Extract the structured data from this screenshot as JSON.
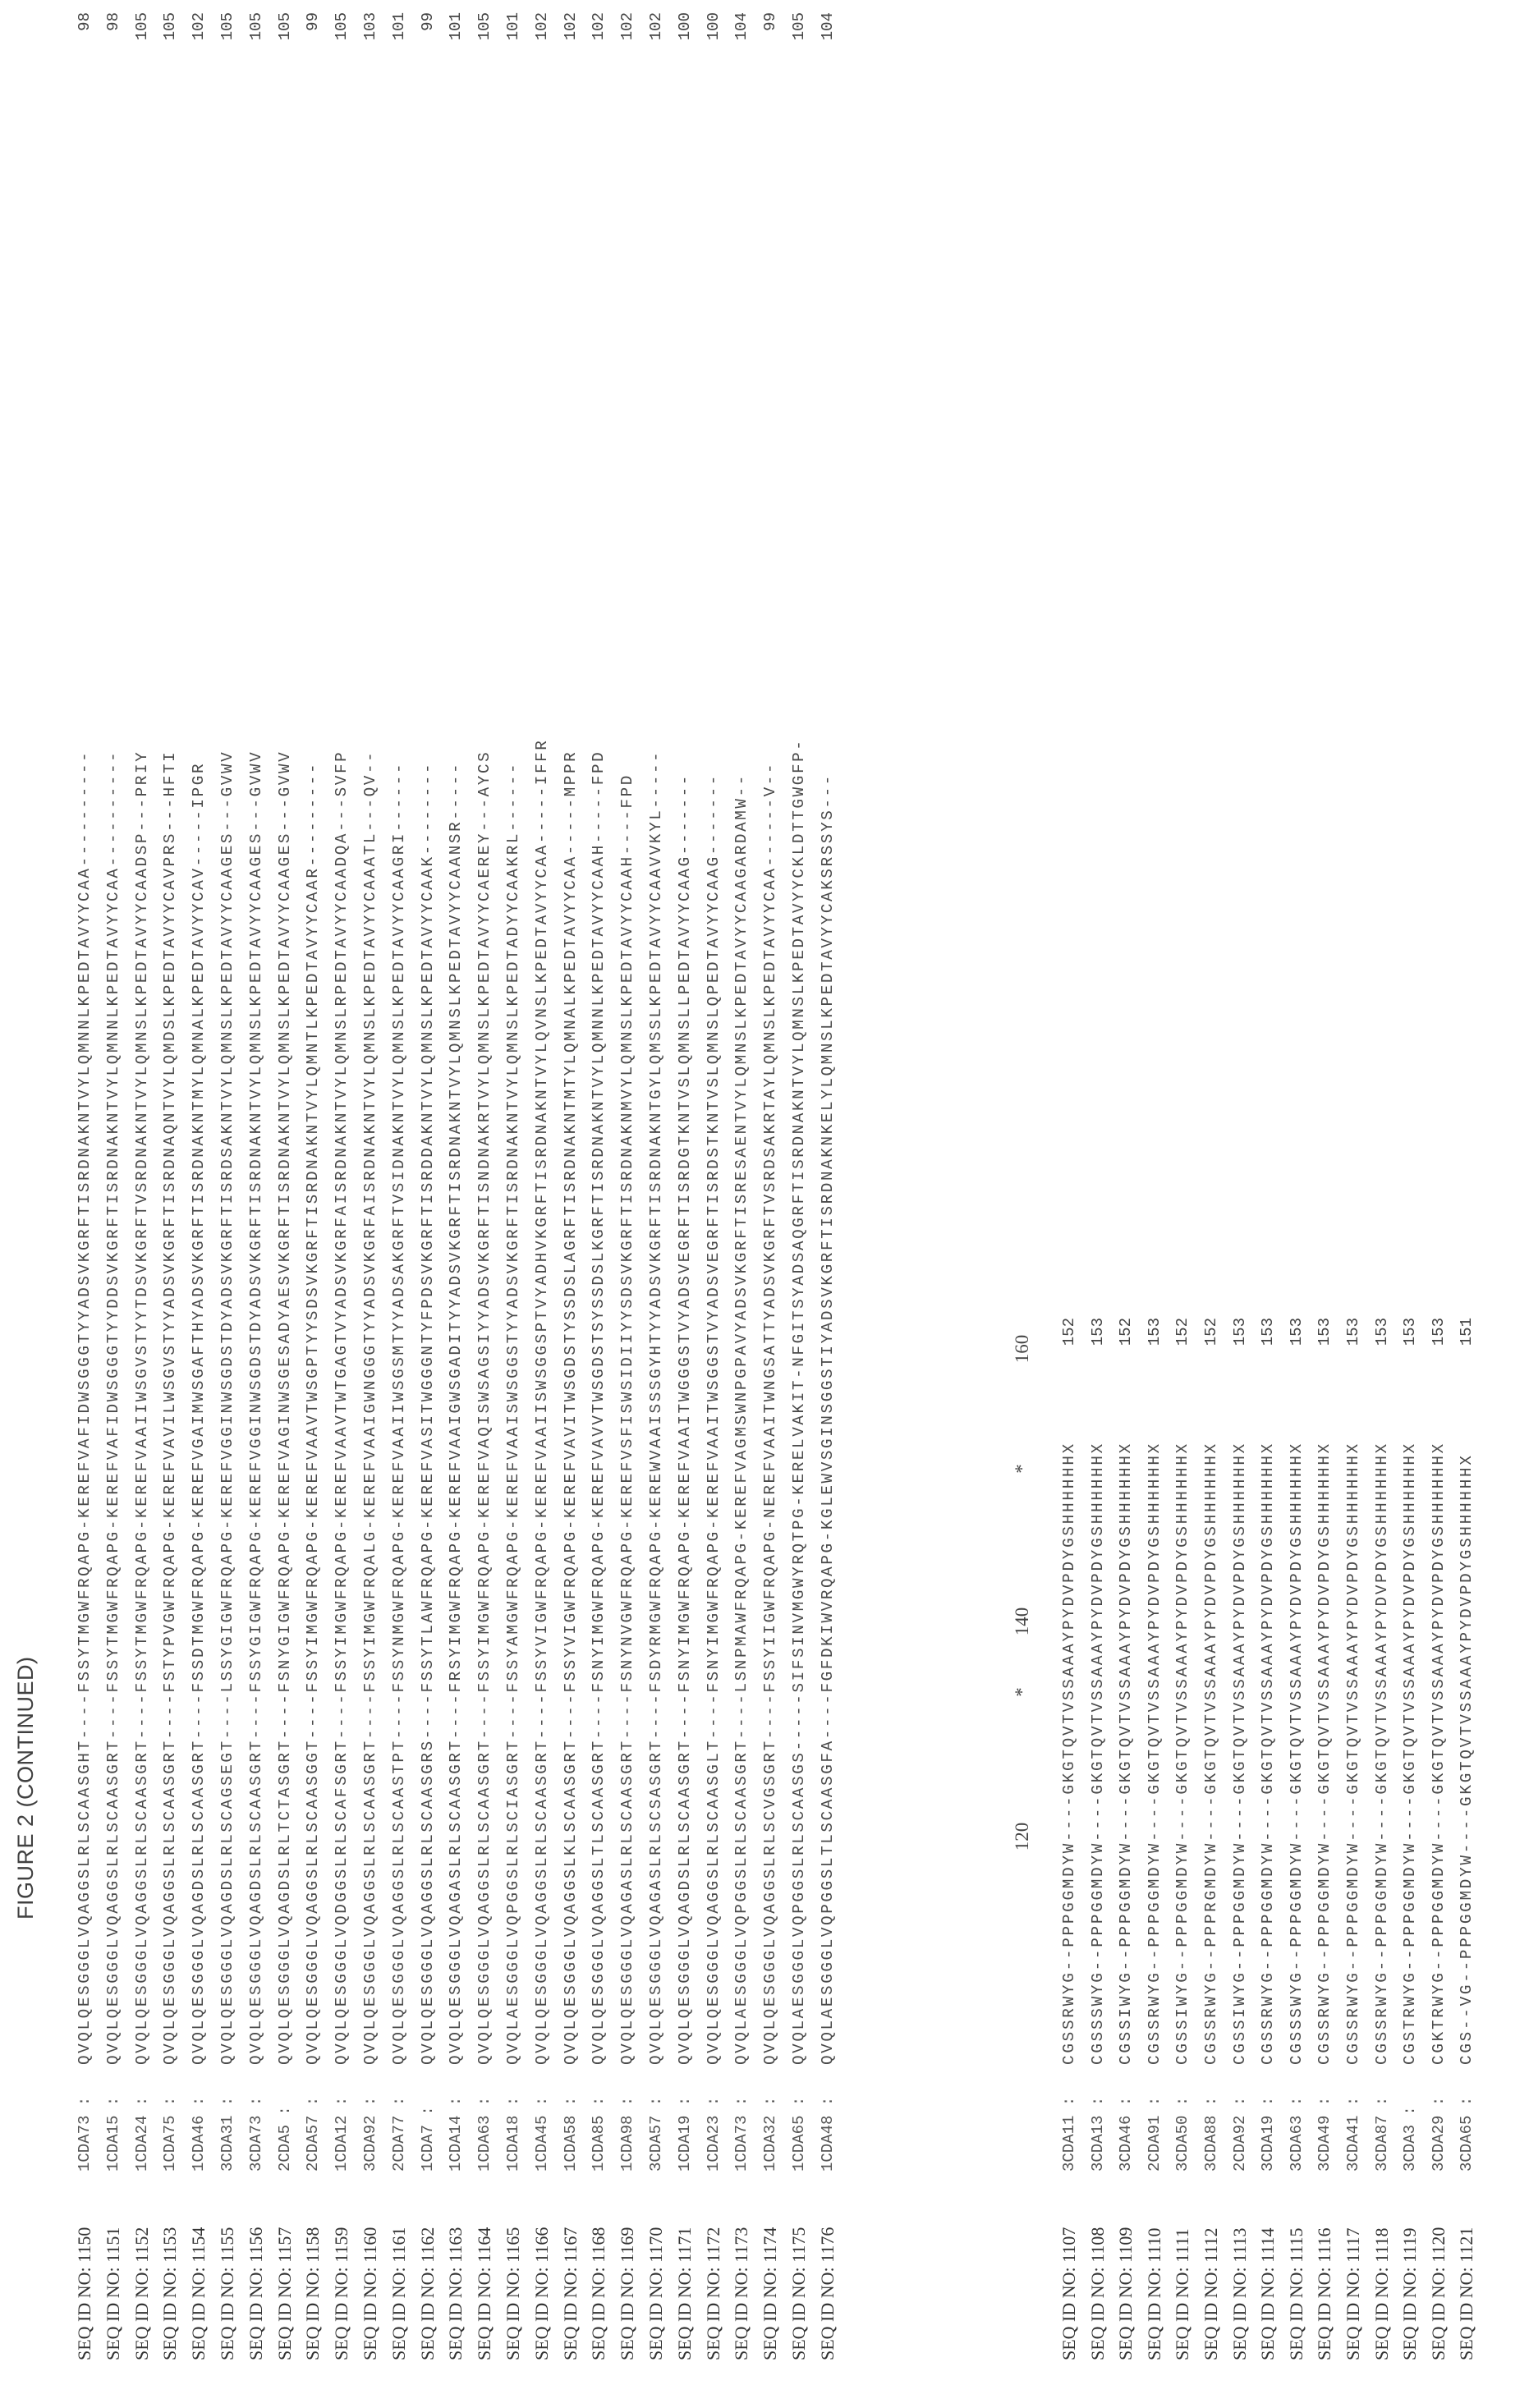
{
  "title": "FIGURE 2 (CONTINUED)",
  "ruler": {
    "labels": [
      "120",
      "*",
      "140",
      "*",
      "160"
    ]
  },
  "top_block": [
    {
      "label": "SEQ ID NO: 1150",
      "clone": "1CDA73",
      "sep": ":",
      "seq": "QVQLQESGGGLVQAGGSLRLSCAASGHT----FSSYTMGWFRQAPG-KEREFVAFIDWSGGGTYYADSVKGRFTISRDNAKNTVYLQMNNLKPEDTAVYYCAA----------",
      "len": "98"
    },
    {
      "label": "SEQ ID NO: 1151",
      "clone": "1CDA15",
      "sep": ":",
      "seq": "QVQLQESGGGLVQAGGSLRLSCAASGRT----FSSYTMGWFRQAPG-KEREFVAFIDWSGGGTYYDDSVKGRFTISRDNAKNTVYLQMNNLKPEDTAVYYCAA----------",
      "len": "98"
    },
    {
      "label": "SEQ ID NO: 1152",
      "clone": "1CDA24",
      "sep": ":",
      "seq": "QVQLQESGGGLVQAGGSLRLSCAASGRT----FSSYTMGWFRQAPG-KEREFVAAIIWSGVSTYYTDSVKGRFTVSRDNAKNTVYLQMNSLKPEDTAVYYCAADSP---PRIY",
      "len": "105"
    },
    {
      "label": "SEQ ID NO: 1153",
      "clone": "1CDA75",
      "sep": ":",
      "seq": "QVQLQESGGGLVQAGGSLRLSCAASGRT----FSTYPVGWFRQAPG-KEREFVAVILWSGVSTYYADSVKGRFTISRDNAQNTVYLQMDSLKPEDTAVYYCAVPRS---HFTI",
      "len": "105"
    },
    {
      "label": "SEQ ID NO: 1154",
      "clone": "1CDA46",
      "sep": ":",
      "seq": "QVQLQESGGGLVQAGDSLRLSCAASGRT----FSSDTMGWFRQAPG-KEREFVGAIMWSGAFTHYADSVKGRFTISRDNAKNTMYLQMNALKPEDTAVYYCAV-----IPGR",
      "len": "102"
    },
    {
      "label": "SEQ ID NO: 1155",
      "clone": "3CDA31",
      "sep": ":",
      "seq": "QVQLQESGGGLVQAGDSLRLSCAGSEGT----LSSYGIGWFRQAPG-KEREFVGGINWSGDSTDYADSVKGRFTISRDSAKNTVYLQMNSLKPEDTAVYYCAAGES---GVWV",
      "len": "105"
    },
    {
      "label": "SEQ ID NO: 1156",
      "clone": "3CDA73",
      "sep": ":",
      "seq": "QVQLQESGGGLVQAGDSLRLSCAASGRT----FSSYGIGWFRQAPG-KEREFVGGINWSGDSTDYADSVKGRFTISRDNAKNTVYLQMNSLKPEDTAVYYCAAGES---GVWV",
      "len": "105"
    },
    {
      "label": "SEQ ID NO: 1157",
      "clone": "2CDA5",
      "sep": ":",
      "seq": "QVQLQESGGGLVQAGDSLRLTCTASGRT----FSNYGIGWFRQAPG-KEREFVAGINWSGESADYAESVKGRFTISRDNAKNTVYLQMNSLKPEDTAVYYCAAGES---GVWV",
      "len": "105"
    },
    {
      "label": "SEQ ID NO: 1158",
      "clone": "2CDA57",
      "sep": ":",
      "seq": "QVQLQESGGGLVQAGGSLRLSCAASGGT----FSSYIMGWFRQAPG-KEREFVAAVTWSGPTYYSDSVKGRFTISRDNAKNTVYLQMNTLKPEDTAVYYCAAR---------",
      "len": "99"
    },
    {
      "label": "SEQ ID NO: 1159",
      "clone": "1CDA12",
      "sep": ":",
      "seq": "QVQLQESGGGLVQDGGSLRLSCAFSGRT----FSSYIMGWFRQAPG-KEREFVAAVTWTGAGTVYADSVKGRFAISRDNAKNTVYLQMNSLRPEDTAVYYCAADQA---SVFP",
      "len": "105"
    },
    {
      "label": "SEQ ID NO: 1160",
      "clone": "3CDA92",
      "sep": ":",
      "seq": "QVQLQESGGGLVQAGGSLRLSCAASGRT----FSSYIMGWFRQALG-KEREFVAAIGWNGGGTYYADSVKGRFAISRDNAKNTVYLQMNSLKPEDTAVYYCAAATL---QV--",
      "len": "103"
    },
    {
      "label": "SEQ ID NO: 1161",
      "clone": "2CDA77",
      "sep": ":",
      "seq": "QVQLQESGGGLVQAGGSLRLSCAASTPT----FSSYNMGWFRQAPG-KEREFVAAIIWSGSMTYYADSAKGRFTVSIDNAKNTVYLQMNSLKPEDTAVYYCAAGRI------",
      "len": "101"
    },
    {
      "label": "SEQ ID NO: 1162",
      "clone": "1CDA7",
      "sep": ":",
      "seq": "QVQLQESGGGLVQAGGSLRLSCAASGRS----FSSYTLAWFRQAPG-KEREFVASITWGGGNTYFPDSVKGRFTISRDDAKNTVYLQMNSLKPEDTAVYYCAAK--------",
      "len": "99"
    },
    {
      "label": "SEQ ID NO: 1163",
      "clone": "1CDA14",
      "sep": ":",
      "seq": "QVQLQESGGGLVQAGASLRLSCAASGRT----FRSYIMGWFRQAPG-KEREFVAAIGWSGADITYYADSVKGRFTISRDNAKNTVYLQMNSLKPEDTAVYYCAANSR-----",
      "len": "101"
    },
    {
      "label": "SEQ ID NO: 1164",
      "clone": "1CDA63",
      "sep": ":",
      "seq": "QVQLQESGGGLVQAGGSLRLSCAASGRT----FSSYIMGWFRQAPG-KEREFVAQISWSAGSIYYADSVKGRFTISNDNAKRTVYLQMNSLKPEDTAVYYCAEREY---AYCS",
      "len": "105"
    },
    {
      "label": "SEQ ID NO: 1165",
      "clone": "1CDA18",
      "sep": ":",
      "seq": "QVQLAESGGGLVQPGGSLRLSCIASGRT----FSSYAMGWFRQAPG-KEREFVAAISWSGGSTYYADSVKGRFTISRDNAKNTVYLQMNSLKPEDTADYYCAAKRL------",
      "len": "101"
    },
    {
      "label": "SEQ ID NO: 1166",
      "clone": "1CDA45",
      "sep": ":",
      "seq": "QVQLQESGGGLVQAGGSLRLSCAASGRT----FSSYVIGWFRQAPG-KEREFVAAIISWSGGSPTVYADHVKGRFTISRDNAKNTVYLQVNSLKPEDTAVYYCAA-----IFFR",
      "len": "102"
    },
    {
      "label": "SEQ ID NO: 1167",
      "clone": "1CDA58",
      "sep": ":",
      "seq": "QVQLQESGGGLVQAGGSLKLSCAASGRT----FSSYVIGWFRQAPG-KEREFVAVITWSGDSTYSSDSLAGRFTISRDNAKNTMTYLQMNALKPEDTAVYYCAA-----MPPR",
      "len": "102"
    },
    {
      "label": "SEQ ID NO: 1168",
      "clone": "1CDA85",
      "sep": ":",
      "seq": "QVQLQESGGGLVQAGGSLTLSCAASGRT----FSNYIMGWFRQAPG-KEREFVAVVTWSGDSTSYSSDSLKGRFTISRDNAKNTVYLQMNNLKPEDTAVYYCAAH-----FPD",
      "len": "102"
    },
    {
      "label": "SEQ ID NO: 1169",
      "clone": "1CDA98",
      "sep": ":",
      "seq": "QVQLQESGGGLVQAGASLRLSCAASGRT----FSNYNVGWFRQAPG-KEREFVSFISWSIDIIYYSDSVKGRFTISRDNAKNMVYLQMNSLKPEDTAVYYCAAH----FPD",
      "len": "102"
    },
    {
      "label": "SEQ ID NO: 1170",
      "clone": "3CDA57",
      "sep": ":",
      "seq": "QVQLQESGGGLVQAGASLRLSCSASGRT----FSDYRMGWFRQAPG-KEREWVAAISSSGYHTYYADSVKGRFTISRDNAKNTGYLQMSSLKPEDTAVYYCAAVVKYL-----",
      "len": "102"
    },
    {
      "label": "SEQ ID NO: 1171",
      "clone": "1CDA19",
      "sep": ":",
      "seq": "QVQLQESGGGLVQAGDSLRLSCAASGRT----FSNYIMGWFRQAPG-KEREFVAAITWGGGSTVYADSVEGRFTISRDGTKNTVSLQMNSLLPEDTAVYYCAAG-------",
      "len": "100"
    },
    {
      "label": "SEQ ID NO: 1172",
      "clone": "1CDA23",
      "sep": ":",
      "seq": "QVQLQESGGGLVQAGGSLRLSCAASGLT----FSNYIMGWFRQAPG-KEREFVAAITWSGGSTVYADSVEGRFTISRDSTKNTVSLQMNSLQPEDTAVYYCAAG-------",
      "len": "100"
    },
    {
      "label": "SEQ ID NO: 1173",
      "clone": "1CDA73",
      "sep": ":",
      "seq": "QVQLAESGGGLVQPGGSLRLSCAASGRT----LSNPMAWFRQAPG-KEREFVAGMSWNPGPAVYADSVKGRFTISRESAENTVYLQMNSLKPEDTAVYYCAAGARDAMW--",
      "len": "104"
    },
    {
      "label": "SEQ ID NO: 1174",
      "clone": "1CDA32",
      "sep": ":",
      "seq": "QVQLQESGGGLVQAGGSLRLSCVGSGRT----FSSYIIGWFRQAPG-NEREFVAAITWNGSATTYADSVKGRFTVSRDSAKRTAYLQMNSLKPEDTAVYYCAA------V--",
      "len": "99"
    },
    {
      "label": "SEQ ID NO: 1175",
      "clone": "1CDA65",
      "sep": ":",
      "seq": "QVQLAESGGGLVQPGGSLRLSCAASGS-----SIFSINVMGWYRQTPG-KERELVAKIT-NFGITSYADSAQGRFTISRDNAKNTVYLQMNSLKPEDTAVYYCKLDTTGWGFP-",
      "len": "105"
    },
    {
      "label": "SEQ ID NO: 1176",
      "clone": "1CDA48",
      "sep": ":",
      "seq": "QVQLAESGGGLVQPGGSLTLSCAASGFA----FGFDKIWVRQAPG-KGLEWVSGINSGGSTIYADSVKGRFTISRDNAKNKELYLQMNSLKPEDTAVYYCAKSRSSYS---",
      "len": "104"
    }
  ],
  "bottom_block": [
    {
      "label": "SEQ ID NO: 1107",
      "clone": "3CDA11",
      "sep": ":",
      "seq": "CGSSRWYG--PPPGGMDYW----GKGTQVTVSSAAAYPYDVPDYGSHHHHHHX",
      "len": "152"
    },
    {
      "label": "SEQ ID NO: 1108",
      "clone": "3CDA13",
      "sep": ":",
      "seq": "CGSSSWYG--PPPGGMDYW----GKGTQVTVSSAAAYPYDVPDYGSHHHHHHX",
      "len": "153"
    },
    {
      "label": "SEQ ID NO: 1109",
      "clone": "3CDA46",
      "sep": ":",
      "seq": "CGSSIWYG--PPPGGMDYW----GKGTQVTVSSAAAYPYDVPDYGSHHHHHHX",
      "len": "152"
    },
    {
      "label": "SEQ ID NO: 1110",
      "clone": "2CDA91",
      "sep": ":",
      "seq": "CGSSRWYG--PPPGGMDYW----GKGTQVTVSSAAAYPYDVPDYGSHHHHHHX",
      "len": "153"
    },
    {
      "label": "SEQ ID NO: 1111",
      "clone": "3CDA50",
      "sep": ":",
      "seq": "CGSSIWYG--PPPGGMDYW----GKGTQVTVSSAAAYPYDVPDYGSHHHHHHX",
      "len": "152"
    },
    {
      "label": "SEQ ID NO: 1112",
      "clone": "3CDA88",
      "sep": ":",
      "seq": "CGSSRWYG--PPPRGMDYW----GKGTQVTVSSAAAYPYDVPDYGSHHHHHHX",
      "len": "152"
    },
    {
      "label": "SEQ ID NO: 1113",
      "clone": "2CDA92",
      "sep": ":",
      "seq": "CGSSIWYG--PPPGGMDYW----GKGTQVTVSSAAAYPYDVPDYGSHHHHHHX",
      "len": "153"
    },
    {
      "label": "SEQ ID NO: 1114",
      "clone": "3CDA19",
      "sep": ":",
      "seq": "CGSSRWYG--PPPGGMDYW----GKGTQVTVSSAAAYPYDVPDYGSHHHHHHX",
      "len": "153"
    },
    {
      "label": "SEQ ID NO: 1115",
      "clone": "3CDA63",
      "sep": ":",
      "seq": "CGSSSWYG--PPPGGMDYW----GKGTQVTVSSAAAYPYDVPDYGSHHHHHHX",
      "len": "153"
    },
    {
      "label": "SEQ ID NO: 1116",
      "clone": "3CDA49",
      "sep": ":",
      "seq": "CGSSRWYG--PPPGGMDYW----GKGTQVTVSSAAAYPYDVPDYGSHHHHHHX",
      "len": "153"
    },
    {
      "label": "SEQ ID NO: 1117",
      "clone": "3CDA41",
      "sep": ":",
      "seq": "CGSSRWYG--PPPGGMDYW----GKGTQVTVSSAAAYPYDVPDYGSHHHHHHX",
      "len": "153"
    },
    {
      "label": "SEQ ID NO: 1118",
      "clone": "3CDA87",
      "sep": ":",
      "seq": "CGSSRWYG--PPPGGMDYW----GKGTQVTVSSAAAYPYDVPDYGSHHHHHHX",
      "len": "153"
    },
    {
      "label": "SEQ ID NO: 1119",
      "clone": "3CDA3",
      "sep": ":",
      "seq": "CGSTRWYG--PPPGGMDYW----GKGTQVTVSSAAAYPYDVPDYGSHHHHHHX",
      "len": "153"
    },
    {
      "label": "SEQ ID NO: 1120",
      "clone": "3CDA29",
      "sep": ":",
      "seq": "CGKTRWYG--PPPGGMDYW----GKGTQVTVSSAAAYPYDVPDYGSHHHHHHX",
      "len": "153"
    },
    {
      "label": "SEQ ID NO: 1121",
      "clone": "3CDA65",
      "sep": ":",
      "seq": "CGS--VG--PPPGGMDYW----GKGTQVTVSSAAAYPYDVPDYGSHHHHHHX",
      "len": "151"
    }
  ]
}
